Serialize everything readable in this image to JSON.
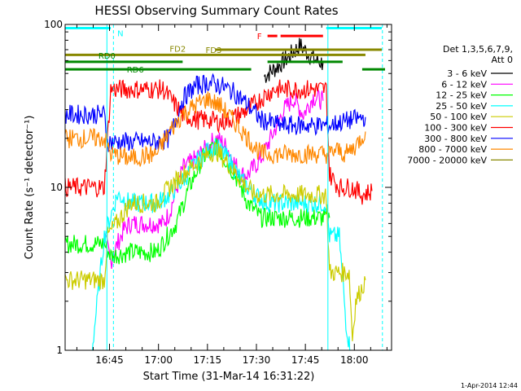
{
  "chart_data": {
    "type": "line",
    "title": "HESSI Observing Summary Count Rates",
    "xlabel": "Start Time (31-Mar-14 16:31:22)",
    "ylabel": "Count Rate (s⁻¹ detector⁻¹)",
    "y_scale": "log",
    "ylim": [
      1,
      100
    ],
    "xlim_minutes_after_start": [
      0,
      100
    ],
    "x_ticks": [
      {
        "label": "16:45",
        "t": 13.6
      },
      {
        "label": "17:00",
        "t": 28.6
      },
      {
        "label": "17:15",
        "t": 43.6
      },
      {
        "label": "17:30",
        "t": 58.6
      },
      {
        "label": "17:45",
        "t": 73.6
      },
      {
        "label": "18:00",
        "t": 88.6
      }
    ],
    "y_ticks": [
      {
        "label": "1",
        "v": 1
      },
      {
        "label": "10",
        "v": 10
      },
      {
        "label": "100",
        "v": 100
      }
    ],
    "legend": {
      "position": "right",
      "header": [
        "Det 1,3,5,6,7,9,",
        "Att 0"
      ],
      "entries": [
        {
          "label": "3 - 6 keV",
          "color": "#000000"
        },
        {
          "label": "6 - 12 keV",
          "color": "#ff00ff"
        },
        {
          "label": "12 - 25 keV",
          "color": "#00ff00"
        },
        {
          "label": "25 - 50 keV",
          "color": "#00ffff"
        },
        {
          "label": "50 - 100 keV",
          "color": "#cccc00"
        },
        {
          "label": "100 - 300 keV",
          "color": "#ff0000"
        },
        {
          "label": "300 - 800 keV",
          "color": "#0000ff"
        },
        {
          "label": "800 - 7000 keV",
          "color": "#ff8800"
        },
        {
          "label": "7000 - 20000 keV",
          "color": "#888800"
        }
      ]
    },
    "series": [
      {
        "name": "3 - 6 keV",
        "color": "#000000",
        "points": [
          [
            61,
            48
          ],
          [
            65,
            55
          ],
          [
            68,
            62
          ],
          [
            70,
            68
          ],
          [
            72,
            74
          ],
          [
            74,
            68
          ],
          [
            76,
            62
          ],
          [
            77,
            60
          ],
          [
            79,
            58
          ]
        ]
      },
      {
        "name": "6 - 12 keV",
        "color": "#ff00ff",
        "points": [
          [
            12,
            5
          ],
          [
            14,
            3.5
          ],
          [
            16,
            4.5
          ],
          [
            18,
            5.5
          ],
          [
            20,
            6
          ],
          [
            22,
            6
          ],
          [
            25,
            6
          ],
          [
            30,
            6
          ],
          [
            32,
            7
          ],
          [
            36,
            13
          ],
          [
            40,
            15
          ],
          [
            44,
            18
          ],
          [
            46,
            20
          ],
          [
            48,
            19
          ],
          [
            50,
            17
          ],
          [
            52,
            14
          ],
          [
            54,
            12
          ],
          [
            56,
            12
          ],
          [
            60,
            15
          ],
          [
            64,
            22
          ],
          [
            67,
            30
          ],
          [
            70,
            35
          ],
          [
            73,
            28
          ],
          [
            76,
            36
          ],
          [
            79,
            34
          ]
        ]
      },
      {
        "name": "12 - 25 keV",
        "color": "#00ff00",
        "points": [
          [
            0,
            4.5
          ],
          [
            6,
            4.5
          ],
          [
            12,
            4.5
          ],
          [
            14,
            3.8
          ],
          [
            20,
            4
          ],
          [
            28,
            4
          ],
          [
            34,
            6
          ],
          [
            38,
            10
          ],
          [
            42,
            15
          ],
          [
            46,
            18
          ],
          [
            48,
            16
          ],
          [
            52,
            12
          ],
          [
            56,
            8
          ],
          [
            60,
            6.5
          ],
          [
            70,
            6.5
          ],
          [
            78,
            6.5
          ],
          [
            81,
            6.5
          ]
        ]
      },
      {
        "name": "25 - 50 keV",
        "color": "#00ffff",
        "points": [
          [
            0,
            0.8
          ],
          [
            4,
            0.8
          ],
          [
            8,
            0.9
          ],
          [
            12,
            5
          ],
          [
            16,
            9
          ],
          [
            20,
            8
          ],
          [
            24,
            8
          ],
          [
            28,
            8
          ],
          [
            32,
            9
          ],
          [
            36,
            11
          ],
          [
            40,
            14
          ],
          [
            44,
            17
          ],
          [
            46,
            18
          ],
          [
            50,
            15
          ],
          [
            54,
            11
          ],
          [
            58,
            9
          ],
          [
            62,
            8
          ],
          [
            66,
            8
          ],
          [
            70,
            8
          ],
          [
            76,
            8
          ],
          [
            80,
            8
          ],
          [
            81,
            5
          ],
          [
            84,
            5
          ],
          [
            86,
            1.5
          ],
          [
            88,
            0.8
          ]
        ]
      },
      {
        "name": "50 - 100 keV",
        "color": "#cccc00",
        "points": [
          [
            0,
            2.7
          ],
          [
            6,
            2.7
          ],
          [
            12,
            2.7
          ],
          [
            13,
            5
          ],
          [
            20,
            8
          ],
          [
            28,
            8
          ],
          [
            32,
            10
          ],
          [
            36,
            12
          ],
          [
            40,
            14
          ],
          [
            44,
            16
          ],
          [
            46,
            17
          ],
          [
            50,
            14
          ],
          [
            54,
            11
          ],
          [
            58,
            9
          ],
          [
            70,
            9
          ],
          [
            80,
            9
          ],
          [
            81,
            3
          ],
          [
            87,
            3
          ],
          [
            88,
            1.2
          ],
          [
            89,
            2
          ],
          [
            92,
            2.7
          ]
        ]
      },
      {
        "name": "100 - 300 keV",
        "color": "#ff0000",
        "points": [
          [
            0,
            10
          ],
          [
            6,
            10
          ],
          [
            12,
            10
          ],
          [
            14,
            40
          ],
          [
            20,
            40
          ],
          [
            25,
            40
          ],
          [
            30,
            40
          ],
          [
            36,
            28
          ],
          [
            40,
            26
          ],
          [
            44,
            26
          ],
          [
            48,
            25
          ],
          [
            52,
            27
          ],
          [
            56,
            30
          ],
          [
            60,
            35
          ],
          [
            64,
            40
          ],
          [
            70,
            40
          ],
          [
            74,
            40
          ],
          [
            80,
            40
          ],
          [
            81,
            12
          ],
          [
            84,
            10
          ],
          [
            88,
            10
          ],
          [
            91,
            9
          ],
          [
            94,
            9.5
          ]
        ]
      },
      {
        "name": "300 - 800 keV",
        "color": "#0000ff",
        "points": [
          [
            0,
            28
          ],
          [
            6,
            28
          ],
          [
            12,
            28
          ],
          [
            13,
            19
          ],
          [
            20,
            19
          ],
          [
            28,
            19
          ],
          [
            32,
            20
          ],
          [
            36,
            35
          ],
          [
            40,
            42
          ],
          [
            44,
            44
          ],
          [
            48,
            42
          ],
          [
            52,
            38
          ],
          [
            56,
            32
          ],
          [
            60,
            26
          ],
          [
            66,
            24
          ],
          [
            72,
            24
          ],
          [
            78,
            24
          ],
          [
            81,
            24
          ],
          [
            84,
            25
          ],
          [
            88,
            26
          ],
          [
            92,
            27
          ]
        ]
      },
      {
        "name": "800 - 7000 keV",
        "color": "#ff8800",
        "points": [
          [
            0,
            20
          ],
          [
            6,
            20
          ],
          [
            10,
            20
          ],
          [
            12,
            20
          ],
          [
            14,
            16
          ],
          [
            20,
            15
          ],
          [
            28,
            16
          ],
          [
            32,
            22
          ],
          [
            36,
            28
          ],
          [
            40,
            32
          ],
          [
            44,
            35
          ],
          [
            48,
            31
          ],
          [
            52,
            25
          ],
          [
            56,
            20
          ],
          [
            60,
            16
          ],
          [
            68,
            16
          ],
          [
            76,
            16
          ],
          [
            81,
            16
          ],
          [
            83,
            17
          ],
          [
            86,
            16
          ],
          [
            89,
            18
          ],
          [
            92,
            22
          ]
        ]
      },
      {
        "name": "7000 - 20000 keV",
        "color": "#888800",
        "points": []
      }
    ],
    "annotations": [
      {
        "label": "N",
        "color": "#00ffff",
        "segments": [
          [
            0,
            14
          ]
        ],
        "level": 95
      },
      {
        "label": "",
        "color": "#00ffff",
        "segments": [
          [
            80,
            97
          ]
        ],
        "level": 95
      },
      {
        "label": "F",
        "color": "#ff0000",
        "segments": [
          [
            62,
            65
          ],
          [
            66,
            79
          ]
        ],
        "level": 85
      },
      {
        "label": "FD2",
        "color": "#888800",
        "segments": [
          [
            0,
            92
          ]
        ],
        "level": 65
      },
      {
        "label": "FD3",
        "color": "#888800",
        "segments": [
          [
            46,
            97
          ]
        ],
        "level": 70
      },
      {
        "label": "RD0",
        "color": "#008800",
        "segments": [
          [
            0,
            36
          ],
          [
            62,
            85
          ]
        ],
        "level": 59
      },
      {
        "label": "RD6",
        "color": "#008800",
        "segments": [
          [
            0,
            57
          ],
          [
            91,
            98
          ]
        ],
        "level": 53
      }
    ],
    "vlines": [
      {
        "t": 12.8,
        "style": "solid",
        "color": "#00ffff"
      },
      {
        "t": 14.8,
        "style": "dashed",
        "color": "#00ffff"
      },
      {
        "t": 80.5,
        "style": "solid",
        "color": "#00ffff"
      },
      {
        "t": 97.2,
        "style": "dashed",
        "color": "#00ffff"
      }
    ],
    "grid": false
  },
  "footer": {
    "timestamp": "1-Apr-2014 12:44"
  }
}
